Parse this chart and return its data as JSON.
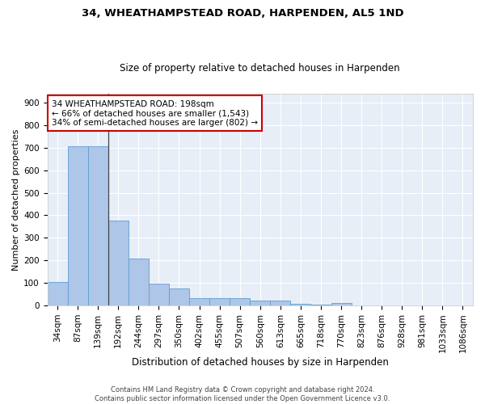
{
  "title1": "34, WHEATHAMPSTEAD ROAD, HARPENDEN, AL5 1ND",
  "title2": "Size of property relative to detached houses in Harpenden",
  "xlabel": "Distribution of detached houses by size in Harpenden",
  "ylabel": "Number of detached properties",
  "categories": [
    "34sqm",
    "87sqm",
    "139sqm",
    "192sqm",
    "244sqm",
    "297sqm",
    "350sqm",
    "402sqm",
    "455sqm",
    "507sqm",
    "560sqm",
    "613sqm",
    "665sqm",
    "718sqm",
    "770sqm",
    "823sqm",
    "876sqm",
    "928sqm",
    "981sqm",
    "1033sqm",
    "1086sqm"
  ],
  "values": [
    103,
    707,
    707,
    375,
    207,
    96,
    75,
    32,
    33,
    34,
    22,
    22,
    8,
    5,
    10,
    0,
    0,
    0,
    0,
    0,
    0
  ],
  "bar_color": "#aec6e8",
  "bar_edge_color": "#5a9fd4",
  "annotation_line1": "34 WHEATHAMPSTEAD ROAD: 198sqm",
  "annotation_line2": "← 66% of detached houses are smaller (1,543)",
  "annotation_line3": "34% of semi-detached houses are larger (802) →",
  "annotation_box_color": "#ffffff",
  "annotation_box_edge_color": "#cc0000",
  "vline_x": 2.5,
  "bg_color": "#e8eef7",
  "ylim": [
    0,
    940
  ],
  "yticks": [
    0,
    100,
    200,
    300,
    400,
    500,
    600,
    700,
    800,
    900
  ],
  "footer": "Contains HM Land Registry data © Crown copyright and database right 2024.\nContains public sector information licensed under the Open Government Licence v3.0.",
  "title1_fontsize": 9.5,
  "title2_fontsize": 8.5,
  "xlabel_fontsize": 8.5,
  "ylabel_fontsize": 8,
  "tick_fontsize": 7.5,
  "annot_fontsize": 7.5,
  "footer_fontsize": 6.0
}
